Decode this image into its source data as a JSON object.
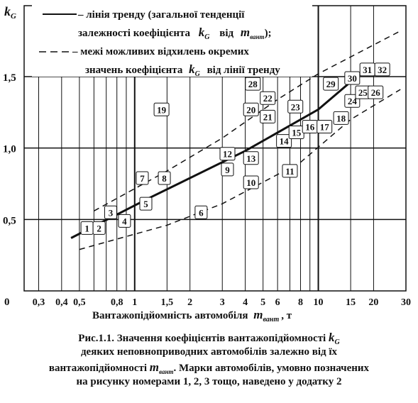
{
  "chart_data": {
    "type": "scatter",
    "y_axis_symbol": "k",
    "y_axis_symbol_sub": "G",
    "x_label": "Вантажопідйомність автомобіля",
    "x_label_sym": "m",
    "x_label_sym_sub": "вант",
    "x_label_unit": ", т",
    "x_scale": "log",
    "xlim": [
      0.25,
      30
    ],
    "ylim": [
      0,
      1.5
    ],
    "y_ticks": [
      {
        "value": 0,
        "label": "0"
      },
      {
        "value": 0.5,
        "label": "0,5"
      },
      {
        "value": 1.0,
        "label": "1,0"
      },
      {
        "value": 1.5,
        "label": "1,5"
      }
    ],
    "x_ticks": [
      {
        "value": 0.3,
        "label": "0,3"
      },
      {
        "value": 0.4,
        "label": "0,4"
      },
      {
        "value": 0.5,
        "label": "0,5"
      },
      {
        "value": 0.8,
        "label": "0,8"
      },
      {
        "value": 1,
        "label": "1"
      },
      {
        "value": 1.5,
        "label": "1,5"
      },
      {
        "value": 2,
        "label": "2"
      },
      {
        "value": 3,
        "label": "3"
      },
      {
        "value": 4,
        "label": "4"
      },
      {
        "value": 5,
        "label": "5"
      },
      {
        "value": 6,
        "label": "6"
      },
      {
        "value": 8,
        "label": "8"
      },
      {
        "value": 10,
        "label": "10"
      },
      {
        "value": 15,
        "label": "15"
      },
      {
        "value": 20,
        "label": "20"
      },
      {
        "value": 30,
        "label": "30"
      }
    ],
    "x_grid": [
      0.3,
      0.4,
      0.5,
      0.6,
      0.7,
      0.8,
      0.9,
      1,
      1.5,
      2,
      3,
      4,
      5,
      6,
      7,
      8,
      9,
      10,
      15,
      20,
      30
    ],
    "x_grid_bold": [
      1,
      10
    ],
    "y_grid": [
      0.5,
      1.0,
      1.5
    ],
    "grid": true,
    "legend": {
      "placement": "top-left",
      "trend": {
        "line1": "– лінія тренду (загальної тенденції",
        "line2_pre": "залежності коефіцієнта",
        "line2_sym": "k",
        "line2_sub": "G",
        "line2_mid": "від",
        "line2_sym2": "m",
        "line2_sub2": "вант",
        "line2_end": ");"
      },
      "bounds": {
        "line1": "– межі можливих відхилень окремих",
        "line2_pre": "значень коефіцієнта",
        "line2_sym": "k",
        "line2_sub": "G",
        "line2_end": "від лінії тренду"
      }
    },
    "trend_line": [
      [
        0.45,
        0.37
      ],
      [
        1.2,
        0.65
      ],
      [
        4.0,
        0.98
      ],
      [
        10,
        1.27
      ],
      [
        18,
        1.55
      ]
    ],
    "upper_bound": [
      [
        0.6,
        0.56
      ],
      [
        1.5,
        0.84
      ],
      [
        3.0,
        1.07
      ],
      [
        6.0,
        1.34
      ],
      [
        10,
        1.52
      ],
      [
        28,
        1.82
      ]
    ],
    "lower_bound": [
      [
        0.5,
        0.29
      ],
      [
        1.5,
        0.46
      ],
      [
        3.0,
        0.61
      ],
      [
        8.0,
        0.9
      ],
      [
        15,
        1.2
      ],
      [
        28,
        1.41
      ]
    ],
    "points": [
      {
        "label": "1",
        "x": 0.55,
        "y": 0.44
      },
      {
        "label": "2",
        "x": 0.64,
        "y": 0.44
      },
      {
        "label": "3",
        "x": 0.74,
        "y": 0.55
      },
      {
        "label": "4",
        "x": 0.88,
        "y": 0.49
      },
      {
        "label": "5",
        "x": 1.15,
        "y": 0.61
      },
      {
        "label": "6",
        "x": 2.3,
        "y": 0.55
      },
      {
        "label": "7",
        "x": 1.1,
        "y": 0.79
      },
      {
        "label": "8",
        "x": 1.45,
        "y": 0.79
      },
      {
        "label": "9",
        "x": 3.2,
        "y": 0.85
      },
      {
        "label": "10",
        "x": 4.3,
        "y": 0.76
      },
      {
        "label": "11",
        "x": 7.0,
        "y": 0.84
      },
      {
        "label": "12",
        "x": 3.2,
        "y": 0.96
      },
      {
        "label": "13",
        "x": 4.3,
        "y": 0.93
      },
      {
        "label": "14",
        "x": 6.5,
        "y": 1.05
      },
      {
        "label": "15",
        "x": 7.6,
        "y": 1.11
      },
      {
        "label": "16",
        "x": 9.0,
        "y": 1.15
      },
      {
        "label": "17",
        "x": 10.8,
        "y": 1.15
      },
      {
        "label": "18",
        "x": 13.3,
        "y": 1.21
      },
      {
        "label": "19",
        "x": 1.4,
        "y": 1.27
      },
      {
        "label": "20",
        "x": 4.3,
        "y": 1.27
      },
      {
        "label": "21",
        "x": 5.3,
        "y": 1.22
      },
      {
        "label": "22",
        "x": 5.3,
        "y": 1.35
      },
      {
        "label": "23",
        "x": 7.5,
        "y": 1.29
      },
      {
        "label": "24",
        "x": 15.3,
        "y": 1.33
      },
      {
        "label": "25",
        "x": 17.5,
        "y": 1.39
      },
      {
        "label": "26",
        "x": 20.5,
        "y": 1.39
      },
      {
        "label": "28",
        "x": 4.4,
        "y": 1.45
      },
      {
        "label": "29",
        "x": 11.7,
        "y": 1.45
      },
      {
        "label": "30",
        "x": 15.3,
        "y": 1.49
      },
      {
        "label": "31",
        "x": 18.5,
        "y": 1.55
      },
      {
        "label": "32",
        "x": 22.3,
        "y": 1.55
      }
    ],
    "caption": {
      "line1_pre": "Рис.1.1. Значення коефіцієнтів вантажопідйомності",
      "line1_sym": "k",
      "line1_sub": "G",
      "line2": "деяких неповноприводних автомобілів залежно від їх",
      "line3_pre": "вантажопідйомності",
      "line3_sym": "m",
      "line3_sub": "вант",
      "line3_post": ". Марки автомобілів, умовно позначених",
      "line4": "на рисунку номерами 1, 2, 3 тощо, наведено у додатку 2"
    }
  }
}
